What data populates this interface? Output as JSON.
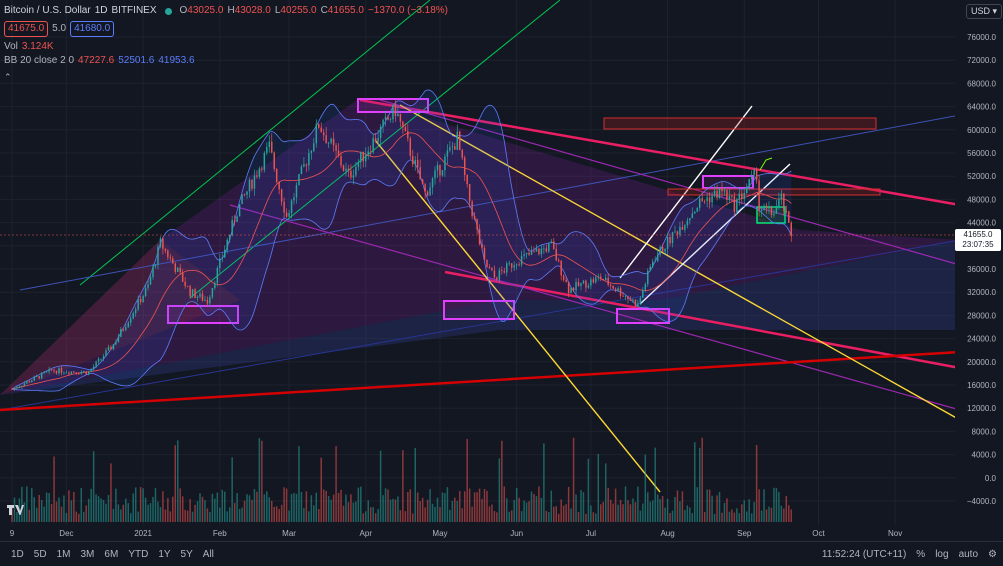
{
  "header": {
    "title": "Bitcoin / U.S. Dollar",
    "interval": "1D",
    "exchange": "BITFINEX",
    "ohlc": {
      "o_label": "O",
      "o": "43025.0",
      "h_label": "H",
      "h": "43028.0",
      "l_label": "L",
      "l": "40255.0",
      "c_label": "C",
      "c": "41655.0",
      "change": "−1370.0 (−3.18%)"
    },
    "bid": "41675.0",
    "spread": "5.0",
    "ask": "41680.0"
  },
  "indicators": {
    "vol_label": "Vol",
    "vol_value": "3.124K",
    "bb_label": "BB 20 close 2 0",
    "bb_mid": "47227.6",
    "bb_upper": "52501.6",
    "bb_lower": "41953.6"
  },
  "currency": "USD",
  "last_price": {
    "price": "41655.0",
    "countdown": "23:07:35"
  },
  "bottom_bar": {
    "timeframes": [
      "1D",
      "5D",
      "1M",
      "3M",
      "6M",
      "YTD",
      "1Y",
      "5Y",
      "All"
    ],
    "clock": "11:52:24 (UTC+11)",
    "percent": "%",
    "log": "log",
    "auto": "auto"
  },
  "colors": {
    "bg": "#131722",
    "up": "#26a69a",
    "down": "#ef5350",
    "bb": "#2962ff",
    "pink": "#e91e63",
    "yellow": "#ffeb3b",
    "green": "#00c853",
    "purple": "#9c27b0"
  },
  "chart_data": {
    "type": "candlestick",
    "price_axis": {
      "ticks": [
        76000,
        72000,
        68000,
        64000,
        60000,
        56000,
        52000,
        48000,
        44000,
        40000,
        36000,
        32000,
        28000,
        24000,
        20000,
        16000,
        12000,
        8000,
        4000,
        0,
        -4000
      ],
      "labels": [
        "76000.0",
        "72000.0",
        "68000.0",
        "64000.0",
        "60000.0",
        "56000.0",
        "52000.0",
        "48000.0",
        "44000.0",
        "40000.0",
        "36000.0",
        "32000.0",
        "28000.0",
        "24000.0",
        "20000.0",
        "16000.0",
        "12000.0",
        "8000.0",
        "4000.0",
        "0.0",
        "−4000.0"
      ]
    },
    "time_axis": {
      "labels": [
        "9",
        "Dec",
        "2021",
        "Feb",
        "Mar",
        "Apr",
        "May",
        "Jun",
        "Jul",
        "Aug",
        "Sep",
        "Oct",
        "Nov"
      ]
    },
    "close_path": [
      [
        "2020-11-09",
        15300
      ],
      [
        "2020-11-25",
        18500
      ],
      [
        "2020-12-10",
        18200
      ],
      [
        "2020-12-20",
        23000
      ],
      [
        "2021-01-03",
        33000
      ],
      [
        "2021-01-08",
        40500
      ],
      [
        "2021-01-20",
        32000
      ],
      [
        "2021-01-27",
        30500
      ],
      [
        "2021-02-08",
        46000
      ],
      [
        "2021-02-21",
        57000
      ],
      [
        "2021-02-28",
        45000
      ],
      [
        "2021-03-13",
        61000
      ],
      [
        "2021-03-25",
        52000
      ],
      [
        "2021-04-13",
        63500
      ],
      [
        "2021-04-25",
        49000
      ],
      [
        "2021-05-08",
        58500
      ],
      [
        "2021-05-12",
        49500
      ],
      [
        "2021-05-19",
        37000
      ],
      [
        "2021-05-23",
        34500
      ],
      [
        "2021-06-01",
        37500
      ],
      [
        "2021-06-15",
        40000
      ],
      [
        "2021-06-22",
        32500
      ],
      [
        "2021-07-05",
        34500
      ],
      [
        "2021-07-20",
        29800
      ],
      [
        "2021-07-26",
        37500
      ],
      [
        "2021-08-14",
        47500
      ],
      [
        "2021-08-23",
        49500
      ],
      [
        "2021-08-28",
        47000
      ],
      [
        "2021-09-06",
        52500
      ],
      [
        "2021-09-07",
        46500
      ],
      [
        "2021-09-12",
        45500
      ],
      [
        "2021-09-16",
        48000
      ],
      [
        "2021-09-20",
        41655
      ]
    ],
    "last": 41655
  }
}
